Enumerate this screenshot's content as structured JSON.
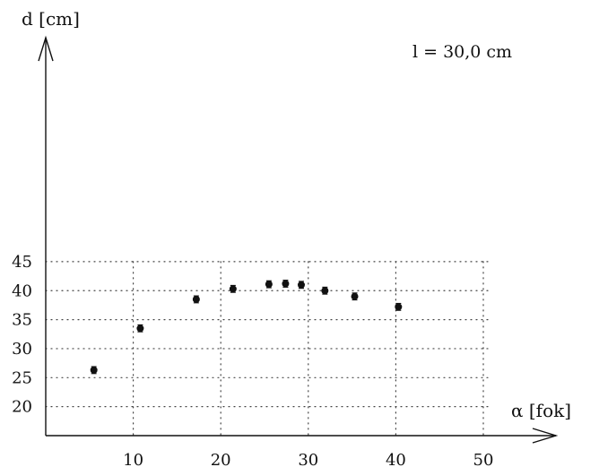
{
  "chart_data": {
    "type": "scatter",
    "title": "",
    "xlabel": "α [fok]",
    "ylabel": "d [cm]",
    "annotation": "l = 30,0 cm",
    "xlim": [
      0,
      50
    ],
    "ylim": [
      15,
      45
    ],
    "x_ticks": [
      10,
      20,
      30,
      40,
      50
    ],
    "y_ticks": [
      20,
      25,
      30,
      35,
      40,
      45
    ],
    "grid": true,
    "legend": "none",
    "series": [
      {
        "points": [
          {
            "x": 5.5,
            "y": 26.3,
            "err": 0.6
          },
          {
            "x": 10.8,
            "y": 33.5,
            "err": 0.6
          },
          {
            "x": 17.2,
            "y": 38.5,
            "err": 0.6
          },
          {
            "x": 21.4,
            "y": 40.3,
            "err": 0.6
          },
          {
            "x": 25.5,
            "y": 41.1,
            "err": 0.6
          },
          {
            "x": 27.4,
            "y": 41.2,
            "err": 0.6
          },
          {
            "x": 29.2,
            "y": 41.0,
            "err": 0.6
          },
          {
            "x": 31.9,
            "y": 40.0,
            "err": 0.6
          },
          {
            "x": 35.3,
            "y": 39.0,
            "err": 0.6
          },
          {
            "x": 40.3,
            "y": 37.2,
            "err": 0.6
          }
        ]
      }
    ]
  }
}
